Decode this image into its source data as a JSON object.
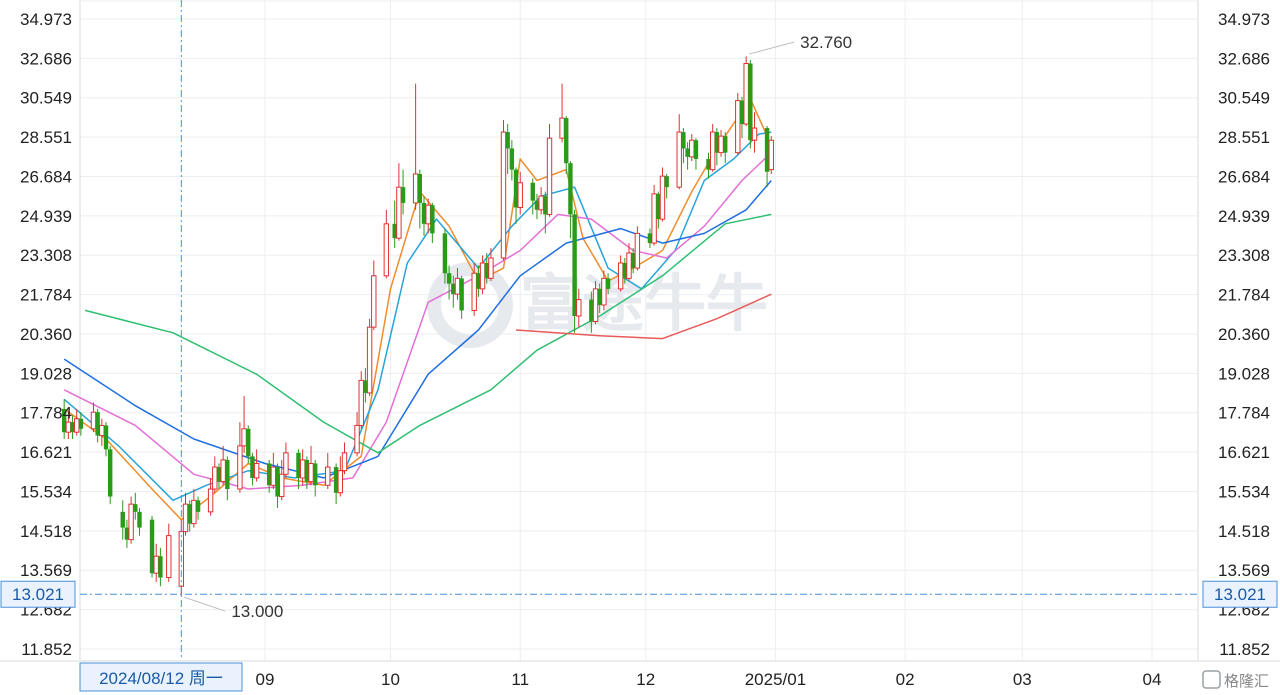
{
  "chart_data": {
    "type": "candlestick",
    "y_ticks": [
      "34.973",
      "32.686",
      "30.549",
      "28.551",
      "26.684",
      "24.939",
      "23.308",
      "21.784",
      "20.360",
      "19.028",
      "17.784",
      "16.621",
      "15.534",
      "14.518",
      "13.569",
      "12.682",
      "11.852"
    ],
    "y_tick_values": [
      34.973,
      32.686,
      30.549,
      28.551,
      26.684,
      24.939,
      23.308,
      21.784,
      20.36,
      19.028,
      17.784,
      16.621,
      15.534,
      14.518,
      13.569,
      12.682,
      11.852
    ],
    "y_scale": "log",
    "x_ticks": [
      "09",
      "10",
      "11",
      "12",
      "2025/01",
      "02",
      "03",
      "04"
    ],
    "x_tick_dates": [
      "2024-09-01",
      "2024-10-01",
      "2024-11-01",
      "2024-12-01",
      "2025-01-01",
      "2025-02-01",
      "2025-03-01",
      "2025-04-01"
    ],
    "crosshair": {
      "date_label": "2024/08/12 周一",
      "price_label": "13.021",
      "date": "2024-08-12",
      "price": 13.021
    },
    "annotations": {
      "high": "32.760",
      "low": "13.000"
    },
    "colors": {
      "up": "#e03131",
      "down": "#2b9a1b",
      "crosshair": "#4a90d9"
    },
    "watermark": "富途牛牛",
    "logo": "格隆汇",
    "series": [
      {
        "color": "#f08c2b",
        "values": [
          [
            "2024-07-15",
            17.9
          ],
          [
            "2024-07-25",
            17.0
          ],
          [
            "2024-08-05",
            15.6
          ],
          [
            "2024-08-12",
            14.8
          ],
          [
            "2024-08-20",
            15.5
          ],
          [
            "2024-08-28",
            16.3
          ],
          [
            "2024-09-05",
            15.9
          ],
          [
            "2024-09-15",
            15.7
          ],
          [
            "2024-09-24",
            16.5
          ],
          [
            "2024-10-01",
            22.0
          ],
          [
            "2024-10-08",
            26.0
          ],
          [
            "2024-10-15",
            24.5
          ],
          [
            "2024-10-22",
            22.3
          ],
          [
            "2024-10-28",
            22.8
          ],
          [
            "2024-11-01",
            27.5
          ],
          [
            "2024-11-05",
            26.5
          ],
          [
            "2024-11-12",
            27.0
          ],
          [
            "2024-11-16",
            24.0
          ],
          [
            "2024-11-22",
            22.3
          ],
          [
            "2024-11-28",
            22.8
          ],
          [
            "2024-12-05",
            23.5
          ],
          [
            "2024-12-12",
            26.0
          ],
          [
            "2024-12-18",
            28.0
          ],
          [
            "2024-12-26",
            30.5
          ],
          [
            "2024-12-30",
            28.6
          ]
        ]
      },
      {
        "color": "#26a4d9",
        "values": [
          [
            "2024-07-15",
            18.2
          ],
          [
            "2024-07-28",
            16.8
          ],
          [
            "2024-08-10",
            15.3
          ],
          [
            "2024-08-18",
            15.7
          ],
          [
            "2024-08-28",
            16.1
          ],
          [
            "2024-09-08",
            15.9
          ],
          [
            "2024-09-20",
            16.1
          ],
          [
            "2024-09-28",
            18.5
          ],
          [
            "2024-10-05",
            23.0
          ],
          [
            "2024-10-12",
            24.8
          ],
          [
            "2024-10-22",
            22.8
          ],
          [
            "2024-10-30",
            24.5
          ],
          [
            "2024-11-06",
            25.8
          ],
          [
            "2024-11-14",
            26.2
          ],
          [
            "2024-11-22",
            22.8
          ],
          [
            "2024-11-30",
            22.0
          ],
          [
            "2024-12-08",
            23.5
          ],
          [
            "2024-12-15",
            26.5
          ],
          [
            "2024-12-22",
            27.5
          ],
          [
            "2024-12-28",
            28.7
          ],
          [
            "2024-12-31",
            28.8
          ]
        ]
      },
      {
        "color": "#e46fd6",
        "values": [
          [
            "2024-07-15",
            18.5
          ],
          [
            "2024-08-01",
            17.4
          ],
          [
            "2024-08-15",
            16.0
          ],
          [
            "2024-08-28",
            15.6
          ],
          [
            "2024-09-10",
            15.7
          ],
          [
            "2024-09-22",
            15.9
          ],
          [
            "2024-09-30",
            17.5
          ],
          [
            "2024-10-10",
            21.5
          ],
          [
            "2024-10-22",
            22.5
          ],
          [
            "2024-11-01",
            23.5
          ],
          [
            "2024-11-10",
            25.0
          ],
          [
            "2024-11-18",
            24.8
          ],
          [
            "2024-11-28",
            23.5
          ],
          [
            "2024-12-06",
            23.2
          ],
          [
            "2024-12-15",
            24.5
          ],
          [
            "2024-12-24",
            26.5
          ],
          [
            "2024-12-31",
            27.8
          ]
        ]
      },
      {
        "color": "#1f6fe0",
        "values": [
          [
            "2024-07-15",
            19.5
          ],
          [
            "2024-08-01",
            18.0
          ],
          [
            "2024-08-15",
            17.0
          ],
          [
            "2024-09-01",
            16.3
          ],
          [
            "2024-09-15",
            15.9
          ],
          [
            "2024-09-28",
            16.5
          ],
          [
            "2024-10-10",
            19.0
          ],
          [
            "2024-10-22",
            20.5
          ],
          [
            "2024-11-01",
            22.5
          ],
          [
            "2024-11-12",
            23.8
          ],
          [
            "2024-11-25",
            24.4
          ],
          [
            "2024-12-05",
            23.8
          ],
          [
            "2024-12-15",
            24.2
          ],
          [
            "2024-12-25",
            25.2
          ],
          [
            "2024-12-31",
            26.5
          ]
        ]
      },
      {
        "color": "#2fbf71",
        "values": [
          [
            "2024-07-20",
            21.2
          ],
          [
            "2024-08-10",
            20.4
          ],
          [
            "2024-08-30",
            19.0
          ],
          [
            "2024-09-15",
            17.5
          ],
          [
            "2024-09-28",
            16.6
          ],
          [
            "2024-10-08",
            17.4
          ],
          [
            "2024-10-25",
            18.5
          ],
          [
            "2024-11-05",
            19.8
          ],
          [
            "2024-11-20",
            21.0
          ],
          [
            "2024-12-05",
            22.5
          ],
          [
            "2024-12-20",
            24.6
          ],
          [
            "2024-12-31",
            25.0
          ]
        ]
      },
      {
        "color": "#e85a5a",
        "values": [
          [
            "2024-10-31",
            20.5
          ],
          [
            "2024-11-20",
            20.3
          ],
          [
            "2024-12-05",
            20.2
          ],
          [
            "2024-12-18",
            20.9
          ],
          [
            "2024-12-31",
            21.8
          ]
        ]
      }
    ],
    "candles": [
      [
        "2024-07-15",
        17.9,
        17.2,
        18.2,
        17.0
      ],
      [
        "2024-07-16",
        17.2,
        17.5,
        17.8,
        17.0
      ],
      [
        "2024-07-17",
        17.5,
        17.2,
        17.7,
        17.0
      ],
      [
        "2024-07-18",
        17.2,
        17.6,
        17.9,
        17.1
      ],
      [
        "2024-07-19",
        17.6,
        17.3,
        17.8,
        17.1
      ],
      [
        "2024-07-22",
        17.3,
        17.8,
        18.1,
        17.2
      ],
      [
        "2024-07-23",
        17.8,
        17.1,
        17.9,
        16.9
      ],
      [
        "2024-07-24",
        17.1,
        17.4,
        17.6,
        16.8
      ],
      [
        "2024-07-25",
        17.4,
        16.7,
        17.5,
        16.5
      ],
      [
        "2024-07-26",
        16.7,
        15.4,
        16.8,
        15.2
      ],
      [
        "2024-07-29",
        15.0,
        14.6,
        15.3,
        14.3
      ],
      [
        "2024-07-30",
        14.6,
        14.3,
        14.8,
        14.1
      ],
      [
        "2024-07-31",
        14.3,
        15.2,
        15.4,
        14.2
      ],
      [
        "2024-08-01",
        15.2,
        15.0,
        15.5,
        14.8
      ],
      [
        "2024-08-02",
        15.0,
        14.6,
        15.1,
        14.4
      ],
      [
        "2024-08-05",
        14.8,
        13.5,
        14.9,
        13.4
      ],
      [
        "2024-08-06",
        13.5,
        13.9,
        14.2,
        13.3
      ],
      [
        "2024-08-07",
        13.9,
        13.4,
        14.1,
        13.2
      ],
      [
        "2024-08-09",
        13.4,
        14.4,
        14.7,
        13.3
      ],
      [
        "2024-08-12",
        13.2,
        14.5,
        14.8,
        13.0
      ],
      [
        "2024-08-13",
        14.5,
        15.2,
        15.5,
        14.4
      ],
      [
        "2024-08-14",
        15.2,
        14.7,
        15.3,
        14.5
      ],
      [
        "2024-08-15",
        14.7,
        15.3,
        15.6,
        14.6
      ],
      [
        "2024-08-16",
        15.3,
        15.0,
        15.4,
        14.8
      ],
      [
        "2024-08-19",
        15.0,
        15.6,
        15.9,
        14.9
      ],
      [
        "2024-08-20",
        15.6,
        16.2,
        16.5,
        15.5
      ],
      [
        "2024-08-21",
        16.2,
        15.8,
        16.3,
        15.6
      ],
      [
        "2024-08-22",
        15.8,
        16.4,
        16.8,
        15.7
      ],
      [
        "2024-08-23",
        16.4,
        15.6,
        16.5,
        15.3
      ],
      [
        "2024-08-26",
        15.6,
        16.8,
        17.5,
        15.5
      ],
      [
        "2024-08-27",
        16.8,
        17.3,
        18.3,
        16.6
      ],
      [
        "2024-08-28",
        17.3,
        16.5,
        17.4,
        16.3
      ],
      [
        "2024-08-29",
        16.5,
        15.9,
        16.6,
        15.7
      ],
      [
        "2024-08-30",
        15.9,
        16.3,
        16.7,
        15.8
      ],
      [
        "2024-09-02",
        16.3,
        15.7,
        16.4,
        15.5
      ],
      [
        "2024-09-03",
        15.7,
        16.2,
        16.6,
        15.6
      ],
      [
        "2024-09-04",
        16.2,
        15.4,
        16.3,
        15.1
      ],
      [
        "2024-09-05",
        15.4,
        16.0,
        16.4,
        15.3
      ],
      [
        "2024-09-06",
        16.0,
        16.6,
        16.9,
        15.9
      ],
      [
        "2024-09-09",
        16.6,
        15.9,
        16.7,
        15.6
      ],
      [
        "2024-09-10",
        15.9,
        16.4,
        16.7,
        15.7
      ],
      [
        "2024-09-11",
        16.4,
        15.8,
        16.5,
        15.6
      ],
      [
        "2024-09-12",
        15.8,
        16.3,
        16.8,
        15.7
      ],
      [
        "2024-09-13",
        16.3,
        15.7,
        16.4,
        15.4
      ],
      [
        "2024-09-16",
        15.7,
        16.2,
        16.6,
        15.6
      ],
      [
        "2024-09-18",
        16.2,
        15.5,
        16.3,
        15.2
      ],
      [
        "2024-09-19",
        15.5,
        16.1,
        16.5,
        15.4
      ],
      [
        "2024-09-20",
        16.1,
        16.6,
        16.9,
        16.0
      ],
      [
        "2024-09-23",
        16.6,
        17.4,
        17.8,
        16.5
      ],
      [
        "2024-09-24",
        17.4,
        18.8,
        19.1,
        17.3
      ],
      [
        "2024-09-25",
        18.8,
        18.4,
        19.2,
        18.1
      ],
      [
        "2024-09-26",
        18.4,
        20.6,
        20.9,
        18.3
      ],
      [
        "2024-09-27",
        20.6,
        22.5,
        23.1,
        20.5
      ],
      [
        "2024-09-30",
        22.5,
        24.6,
        25.2,
        22.4
      ],
      [
        "2024-10-02",
        24.6,
        24.0,
        25.6,
        23.6
      ],
      [
        "2024-10-03",
        24.0,
        26.2,
        27.3,
        23.9
      ],
      [
        "2024-10-04",
        26.2,
        25.5,
        27.0,
        25.0
      ],
      [
        "2024-10-07",
        25.5,
        26.8,
        31.3,
        25.2
      ],
      [
        "2024-10-08",
        26.8,
        25.5,
        27.0,
        24.4
      ],
      [
        "2024-10-09",
        25.5,
        24.6,
        25.8,
        24.1
      ],
      [
        "2024-10-10",
        24.6,
        25.4,
        25.7,
        24.2
      ],
      [
        "2024-10-11",
        25.4,
        24.2,
        25.5,
        23.8
      ],
      [
        "2024-10-14",
        24.2,
        22.6,
        24.4,
        22.2
      ],
      [
        "2024-10-15",
        22.6,
        22.2,
        22.9,
        21.6
      ],
      [
        "2024-10-16",
        22.2,
        21.8,
        22.5,
        21.3
      ],
      [
        "2024-10-17",
        21.8,
        22.4,
        22.8,
        21.6
      ],
      [
        "2024-10-18",
        22.4,
        21.2,
        22.5,
        20.9
      ],
      [
        "2024-10-21",
        21.2,
        22.6,
        23.0,
        21.0
      ],
      [
        "2024-10-22",
        22.6,
        22.0,
        22.9,
        21.7
      ],
      [
        "2024-10-23",
        22.0,
        23.0,
        23.3,
        21.8
      ],
      [
        "2024-10-24",
        23.0,
        22.4,
        23.4,
        22.2
      ],
      [
        "2024-10-25",
        22.4,
        23.2,
        23.6,
        22.3
      ],
      [
        "2024-10-28",
        23.2,
        28.8,
        29.4,
        23.1
      ],
      [
        "2024-10-29",
        28.8,
        28.0,
        29.2,
        26.8
      ],
      [
        "2024-10-30",
        28.0,
        27.0,
        28.4,
        26.5
      ],
      [
        "2024-10-31",
        27.0,
        25.3,
        27.1,
        24.6
      ],
      [
        "2024-11-01",
        25.3,
        26.4,
        26.9,
        25.0
      ],
      [
        "2024-11-04",
        26.4,
        25.6,
        26.6,
        25.0
      ],
      [
        "2024-11-05",
        25.6,
        25.2,
        25.9,
        24.8
      ],
      [
        "2024-11-06",
        25.2,
        25.8,
        26.2,
        25.0
      ],
      [
        "2024-11-07",
        25.8,
        25.0,
        26.0,
        24.2
      ],
      [
        "2024-11-08",
        25.0,
        28.5,
        29.2,
        24.9
      ],
      [
        "2024-11-11",
        28.5,
        29.5,
        31.3,
        28.3
      ],
      [
        "2024-11-12",
        29.5,
        27.3,
        29.6,
        26.8
      ],
      [
        "2024-11-13",
        27.3,
        25.0,
        27.4,
        24.0
      ],
      [
        "2024-11-14",
        25.0,
        21.0,
        25.2,
        20.4
      ],
      [
        "2024-11-15",
        21.0,
        21.6,
        22.0,
        20.6
      ],
      [
        "2024-11-18",
        21.6,
        20.8,
        21.9,
        20.4
      ],
      [
        "2024-11-19",
        20.8,
        22.0,
        22.3,
        20.7
      ],
      [
        "2024-11-20",
        22.0,
        21.4,
        22.2,
        21.1
      ],
      [
        "2024-11-21",
        21.4,
        22.4,
        22.7,
        21.2
      ],
      [
        "2024-11-22",
        22.4,
        22.0,
        22.6,
        21.8
      ],
      [
        "2024-11-25",
        22.0,
        23.0,
        23.3,
        21.9
      ],
      [
        "2024-11-26",
        23.0,
        22.4,
        23.2,
        22.2
      ],
      [
        "2024-11-27",
        22.4,
        23.4,
        23.8,
        22.3
      ],
      [
        "2024-11-28",
        23.4,
        22.8,
        23.6,
        22.6
      ],
      [
        "2024-11-29",
        22.8,
        24.2,
        24.5,
        22.7
      ],
      [
        "2024-12-02",
        24.2,
        23.8,
        24.4,
        23.6
      ],
      [
        "2024-12-03",
        23.8,
        25.9,
        26.3,
        23.7
      ],
      [
        "2024-12-04",
        25.9,
        24.8,
        26.0,
        24.4
      ],
      [
        "2024-12-05",
        24.8,
        26.7,
        27.1,
        24.7
      ],
      [
        "2024-12-06",
        26.7,
        26.2,
        26.8,
        25.7
      ],
      [
        "2024-12-09",
        26.2,
        28.8,
        29.7,
        26.1
      ],
      [
        "2024-12-10",
        28.8,
        28.0,
        29.0,
        27.3
      ],
      [
        "2024-12-11",
        28.0,
        27.6,
        28.3,
        27.0
      ],
      [
        "2024-12-12",
        27.6,
        28.4,
        28.7,
        27.4
      ],
      [
        "2024-12-13",
        28.4,
        27.5,
        28.5,
        27.0
      ],
      [
        "2024-12-16",
        27.5,
        27.0,
        27.8,
        26.6
      ],
      [
        "2024-12-17",
        27.0,
        28.8,
        29.2,
        26.9
      ],
      [
        "2024-12-18",
        28.8,
        27.8,
        29.0,
        27.2
      ],
      [
        "2024-12-19",
        27.8,
        28.6,
        28.9,
        27.6
      ],
      [
        "2024-12-20",
        28.6,
        27.8,
        28.8,
        27.3
      ],
      [
        "2024-12-23",
        27.8,
        30.4,
        30.8,
        27.7
      ],
      [
        "2024-12-24",
        30.4,
        29.2,
        30.6,
        28.5
      ],
      [
        "2024-12-25",
        29.2,
        32.4,
        32.8,
        29.1
      ],
      [
        "2024-12-26",
        32.4,
        28.4,
        32.6,
        28.0
      ],
      [
        "2024-12-27",
        28.4,
        29.0,
        29.8,
        27.8
      ],
      [
        "2024-12-30",
        29.0,
        26.9,
        29.1,
        26.2
      ],
      [
        "2024-12-31",
        27.0,
        28.4,
        28.6,
        26.8
      ]
    ]
  }
}
